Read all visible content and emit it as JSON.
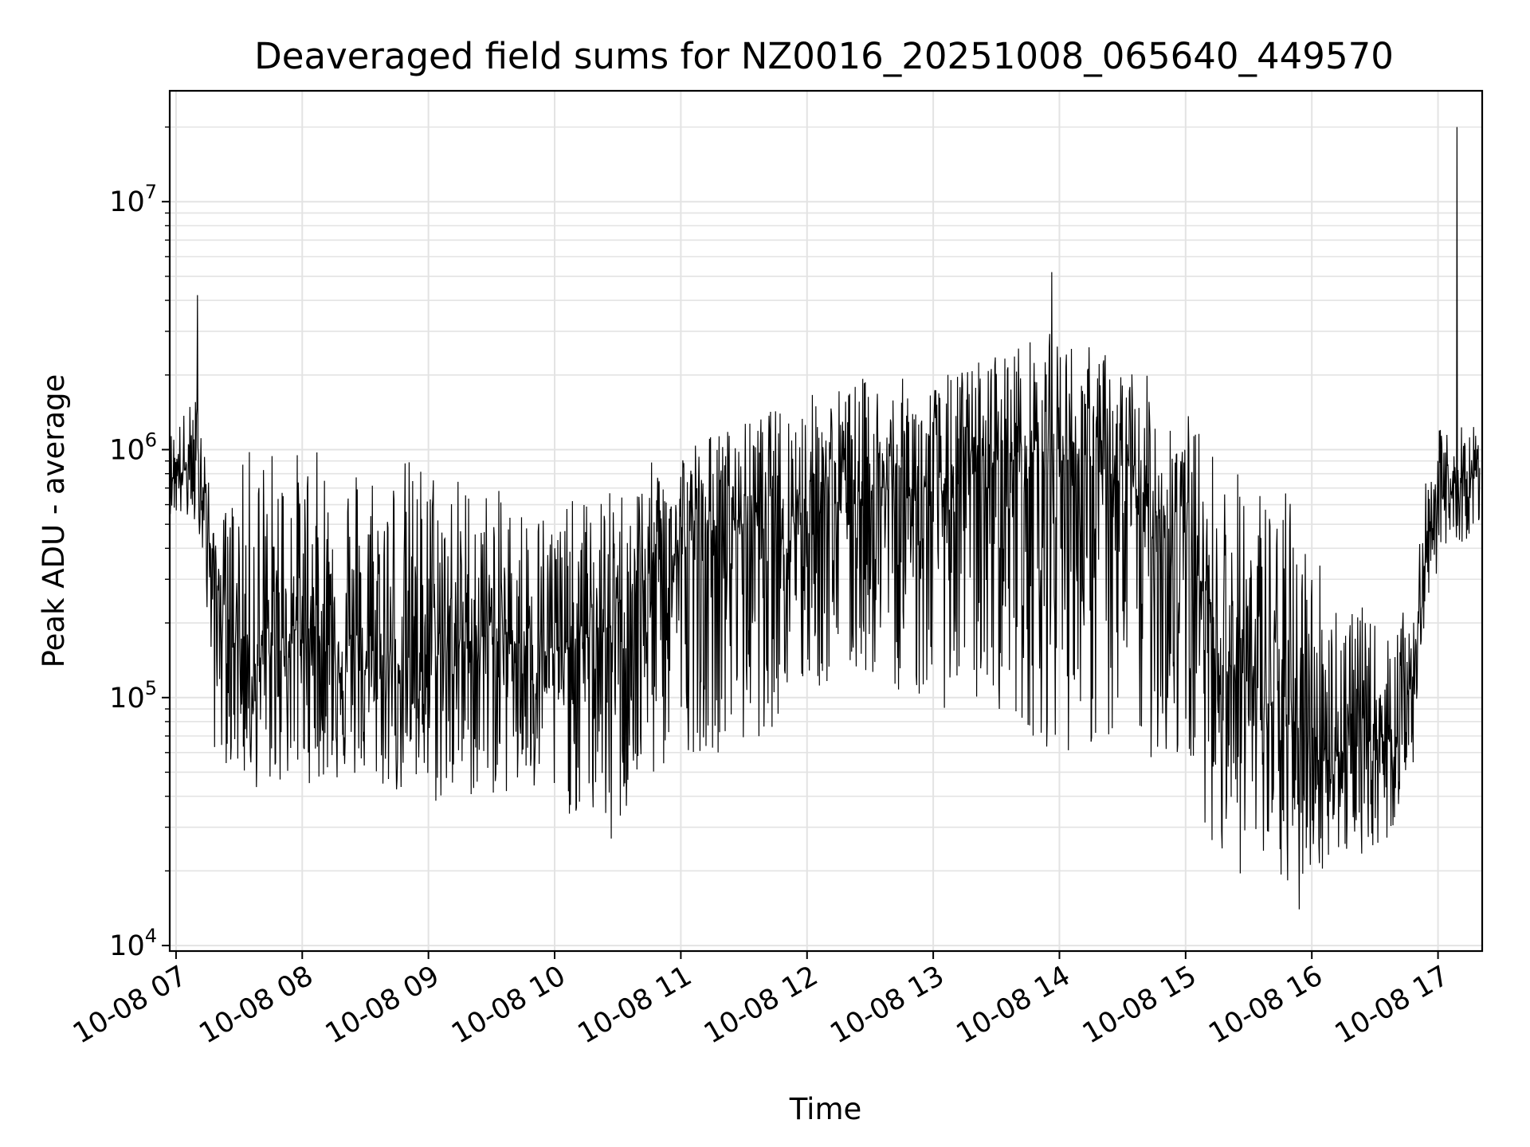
{
  "chart_data": {
    "type": "line",
    "title": "Deaveraged field sums for NZ0016_20251008_065640_449570",
    "xlabel": "Time",
    "ylabel": "Peak ADU - average",
    "yscale": "log",
    "ylim": [
      9500,
      28000000
    ],
    "xlim_hours": [
      6.95,
      17.35
    ],
    "grid": true,
    "line_color": "#000000",
    "grid_color": "#e3e3e3",
    "x_ticks": [
      {
        "hour": 7,
        "label": "10-08 07"
      },
      {
        "hour": 8,
        "label": "10-08 08"
      },
      {
        "hour": 9,
        "label": "10-08 09"
      },
      {
        "hour": 10,
        "label": "10-08 10"
      },
      {
        "hour": 11,
        "label": "10-08 11"
      },
      {
        "hour": 12,
        "label": "10-08 12"
      },
      {
        "hour": 13,
        "label": "10-08 13"
      },
      {
        "hour": 14,
        "label": "10-08 14"
      },
      {
        "hour": 15,
        "label": "10-08 15"
      },
      {
        "hour": 16,
        "label": "10-08 16"
      },
      {
        "hour": 17,
        "label": "10-08 17"
      }
    ],
    "y_ticks": [
      {
        "value": 10000,
        "base": "10",
        "exp": "4"
      },
      {
        "value": 100000,
        "base": "10",
        "exp": "5"
      },
      {
        "value": 1000000,
        "base": "10",
        "exp": "6"
      },
      {
        "value": 10000000,
        "base": "10",
        "exp": "7"
      }
    ],
    "series": [
      {
        "name": "deaveraged field sum",
        "x_start_hour": 6.95,
        "x_end_hour": 17.33,
        "envelope": [
          {
            "hour": 6.95,
            "base": 800000,
            "low": 550000,
            "high": 1200000
          },
          {
            "hour": 7.2,
            "base": 850000,
            "low": 450000,
            "high": 1800000
          },
          {
            "hour": 7.3,
            "base": 300000,
            "low": 60000,
            "high": 450000
          },
          {
            "hour": 7.6,
            "base": 130000,
            "low": 42000,
            "high": 1100000
          },
          {
            "hour": 8.0,
            "base": 200000,
            "low": 45000,
            "high": 1000000
          },
          {
            "hour": 8.5,
            "base": 130000,
            "low": 45000,
            "high": 1000000
          },
          {
            "hour": 9.0,
            "base": 150000,
            "low": 35000,
            "high": 950000
          },
          {
            "hour": 9.5,
            "base": 180000,
            "low": 40000,
            "high": 700000
          },
          {
            "hour": 10.0,
            "base": 150000,
            "low": 35000,
            "high": 600000
          },
          {
            "hour": 10.5,
            "base": 200000,
            "low": 28000,
            "high": 700000
          },
          {
            "hour": 11.0,
            "base": 400000,
            "low": 60000,
            "high": 1100000
          },
          {
            "hour": 11.5,
            "base": 550000,
            "low": 60000,
            "high": 1300000
          },
          {
            "hour": 12.0,
            "base": 600000,
            "low": 100000,
            "high": 1700000
          },
          {
            "hour": 12.5,
            "base": 700000,
            "low": 120000,
            "high": 2000000
          },
          {
            "hour": 13.0,
            "base": 650000,
            "low": 90000,
            "high": 1900000
          },
          {
            "hour": 13.5,
            "base": 900000,
            "low": 90000,
            "high": 2600000
          },
          {
            "hour": 13.95,
            "base": 1000000,
            "low": 60000,
            "high": 3000000
          },
          {
            "hour": 14.5,
            "base": 700000,
            "low": 60000,
            "high": 2400000
          },
          {
            "hour": 15.0,
            "base": 450000,
            "low": 50000,
            "high": 1500000
          },
          {
            "hour": 15.3,
            "base": 150000,
            "low": 20000,
            "high": 900000
          },
          {
            "hour": 15.8,
            "base": 80000,
            "low": 16000,
            "high": 700000
          },
          {
            "hour": 16.2,
            "base": 60000,
            "low": 22000,
            "high": 300000
          },
          {
            "hour": 16.6,
            "base": 70000,
            "low": 25000,
            "high": 180000
          },
          {
            "hour": 16.8,
            "base": 120000,
            "low": 50000,
            "high": 250000
          },
          {
            "hour": 16.95,
            "base": 600000,
            "low": 300000,
            "high": 1200000
          },
          {
            "hour": 17.33,
            "base": 800000,
            "low": 500000,
            "high": 1300000
          }
        ],
        "spikes": [
          {
            "hour": 7.17,
            "value": 4200000
          },
          {
            "hour": 13.94,
            "value": 5200000
          },
          {
            "hour": 17.15,
            "value": 20000000
          },
          {
            "hour": 10.45,
            "value": 27000
          },
          {
            "hour": 15.9,
            "value": 14000
          }
        ]
      }
    ]
  }
}
